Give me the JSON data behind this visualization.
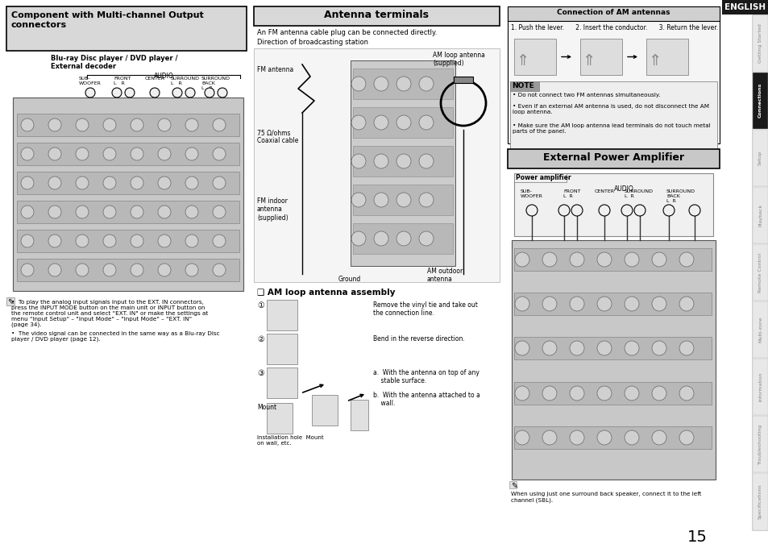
{
  "bg_color": "#ffffff",
  "english_tab_bg": "#1a1a1a",
  "english_tab_text": "#ffffff",
  "english_tab_label": "ENGLISH",
  "side_tabs": [
    "Getting Started",
    "Connections",
    "Setup",
    "Playback",
    "Remote Control",
    "Multi-zone",
    "Information",
    "Troubleshooting",
    "Specifications"
  ],
  "active_tab": "Connections",
  "active_tab_bg": "#1a1a1a",
  "inactive_tab_bg": "#e8e8e8",
  "inactive_tab_text": "#888888",
  "page_number": "15",
  "s1_title": "Component with Multi-channel Output\nconnectors",
  "s1_subtitle": "Blu-ray Disc player / DVD player /\nExternal decoder",
  "s1_audio": "AUDIO",
  "s1_cols": [
    "SUB-\nWOOFER",
    "FRONT\nL    R",
    "CENTER",
    "SURROUND\nL    R",
    "SURROUND\nBACK\nL    R"
  ],
  "s1_note1": "To play the analog input signals input to the EXT. IN connectors,\npress the INPUT MODE button on the main unit or INPUT button on\nthe remote control unit and select \"EXT. IN\" or make the settings at\nmenu \"Input Setup\" – \"Input Mode\" – \"Input Mode\" – \"EXT. IN\"\n(page 34).",
  "s1_note2": "The video signal can be connected in the same way as a Blu-ray Disc\nplayer / DVD player (page 12).",
  "s2_title": "Antenna terminals",
  "s2_desc": "An FM antenna cable plug can be connected directly.",
  "s2_dir": "Direction of broadcasting station",
  "s2_fm": "FM antenna",
  "s2_75ohm": "75 Ω/ohms\nCoaxial cable",
  "s2_fm_indoor": "FM indoor\nantenna\n(supplied)",
  "s2_ground": "Ground",
  "s2_am_loop": "AM loop antenna\n(supplied)",
  "s2_am_outdoor": "AM outdoor\nantenna",
  "s2_am_title": "❑ AM loop antenna assembly",
  "s2_step1": "Remove the vinyl tie and take out\nthe connection line.",
  "s2_step2": "Bend in the reverse direction.",
  "s2_step3a": "a.  With the antenna on top of any\n    stable surface.",
  "s2_step3b": "b.  With the antenna attached to a\n    wall.",
  "s2_mount": "Mount",
  "s2_bottom": "Installation hole  Mount\non wall, etc.",
  "s3_title": "Connection of AM antennas",
  "s3_steps": "1. Push the lever.      2. Insert the conductor.      3. Return the lever.",
  "s3_note_title": "NOTE",
  "s3_note1": "Do not connect two FM antennas simultaneously.",
  "s3_note2": "Even if an external AM antenna is used, do not disconnect the AM\nloop antenna.",
  "s3_note3": "Make sure the AM loop antenna lead terminals do not touch metal\nparts of the panel.",
  "s4_title": "External Power Amplifier",
  "s4_subtitle": "Power amplifier",
  "s4_audio": "AUDIO",
  "s4_cols": [
    "SUB-\nWOOFER",
    "FRONT\nL    R",
    "CENTER",
    "SURROUND\nL    R",
    "SURROUND\nBACK\nL    R"
  ],
  "s4_note": "When using just one surround back speaker, connect it to the left\nchannel (SBL)."
}
